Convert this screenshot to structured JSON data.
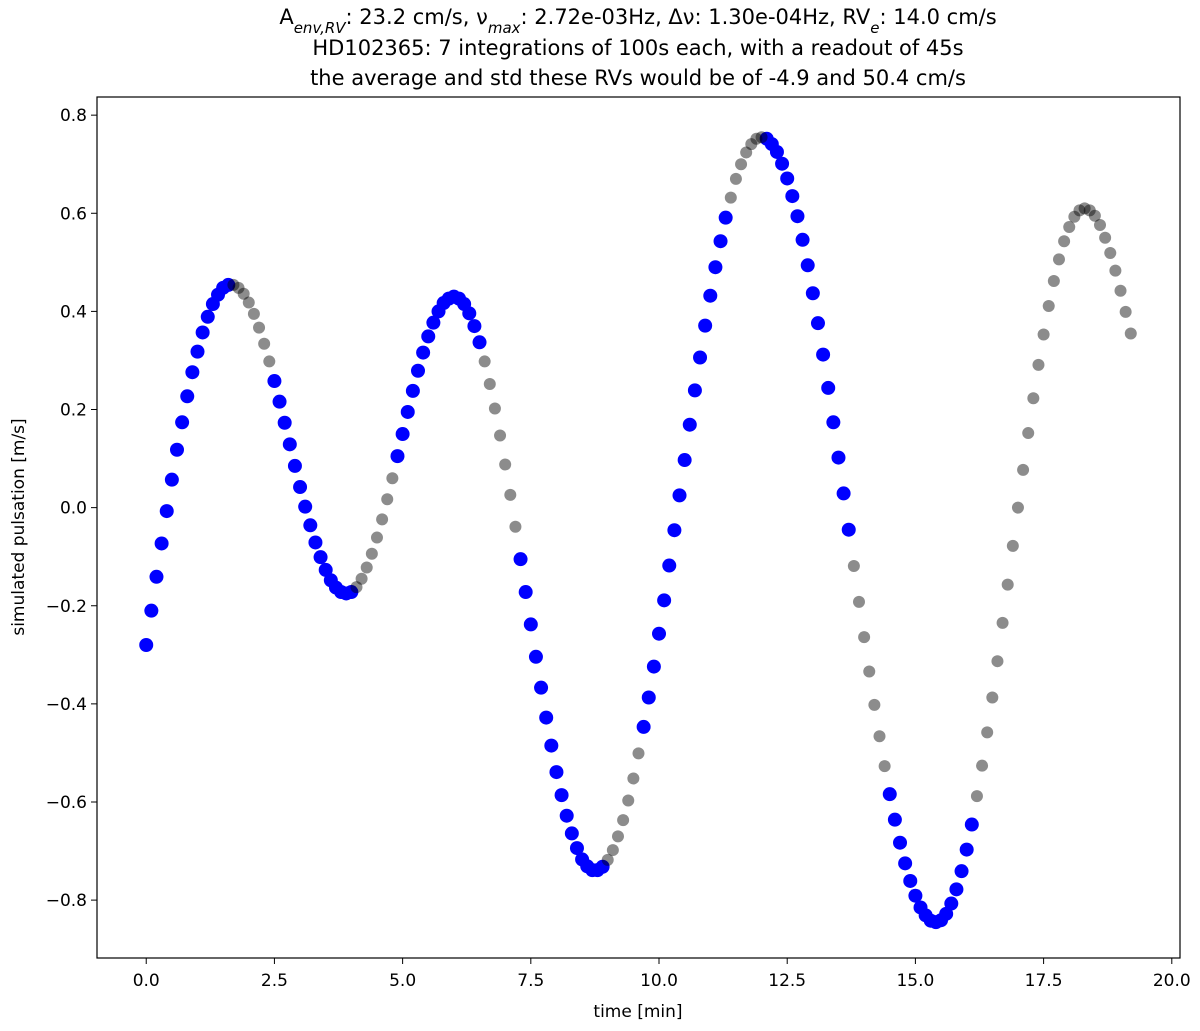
{
  "chart_data": {
    "type": "scatter",
    "title": [
      "A",
      "env,RV",
      ": 23.2 cm/s, ν",
      "max",
      ": 2.72e-03Hz, Δν: 1.30e-04Hz, RV",
      "e",
      ": 14.0 cm/s"
    ],
    "subtitle": [
      "HD102365: 7 integrations of 100s each, with a readout of 45s",
      "the average and std these RVs would be of -4.9 and 50.4 cm/s"
    ],
    "xlabel": "time [min]",
    "ylabel": "simulated pulsation [m/s]",
    "xlim": [
      -0.96,
      20.16
    ],
    "ylim": [
      -0.918,
      0.837
    ],
    "xticks": [
      {
        "value": 0,
        "label": "0.0"
      },
      {
        "value": 2.5,
        "label": "2.5"
      },
      {
        "value": 5,
        "label": "5.0"
      },
      {
        "value": 7.5,
        "label": "7.5"
      },
      {
        "value": 10,
        "label": "10.0"
      },
      {
        "value": 12.5,
        "label": "12.5"
      },
      {
        "value": 15,
        "label": "15.0"
      },
      {
        "value": 17.5,
        "label": "17.5"
      },
      {
        "value": 20,
        "label": "20.0"
      }
    ],
    "yticks": [
      {
        "value": -0.8,
        "label": "−0.8"
      },
      {
        "value": -0.6,
        "label": "−0.6"
      },
      {
        "value": -0.4,
        "label": "−0.4"
      },
      {
        "value": -0.2,
        "label": "−0.2"
      },
      {
        "value": 0,
        "label": "0.0"
      },
      {
        "value": 0.2,
        "label": "0.2"
      },
      {
        "value": 0.4,
        "label": "0.4"
      },
      {
        "value": 0.6,
        "label": "0.6"
      },
      {
        "value": 0.8,
        "label": "0.8"
      }
    ],
    "grid": false,
    "series": [
      {
        "color": "#0000ff",
        "alpha": 1,
        "x": [
          0,
          0.1,
          0.2,
          0.3,
          0.4,
          0.5,
          0.6,
          0.7,
          0.8,
          0.9,
          1.0,
          1.1,
          1.2,
          1.3,
          1.4,
          1.5,
          1.6,
          2.5,
          2.6,
          2.7,
          2.8,
          2.9,
          3.0,
          3.1,
          3.2,
          3.3,
          3.4,
          3.5,
          3.6,
          3.7,
          3.8,
          3.9,
          4.0,
          4.9,
          5.0,
          5.1,
          5.2,
          5.3,
          5.4,
          5.5,
          5.6,
          5.7,
          5.8,
          5.9,
          6.0,
          6.1,
          6.2,
          6.3,
          6.4,
          6.5,
          7.3,
          7.4,
          7.5,
          7.6,
          7.7,
          7.8,
          7.9,
          8.0,
          8.1,
          8.2,
          8.3,
          8.4,
          8.5,
          8.6,
          8.7,
          8.8,
          8.9,
          9.7,
          9.8,
          9.9,
          10.0,
          10.1,
          10.2,
          10.3,
          10.4,
          10.5,
          10.6,
          10.7,
          10.8,
          10.9,
          11.0,
          11.1,
          11.2,
          11.3,
          12.1,
          12.2,
          12.3,
          12.4,
          12.5,
          12.6,
          12.7,
          12.8,
          12.9,
          13.0,
          13.1,
          13.2,
          13.3,
          13.4,
          13.5,
          13.6,
          13.7,
          14.5,
          14.6,
          14.7,
          14.8,
          14.9,
          15.0,
          15.1,
          15.2,
          15.3,
          15.4,
          15.5,
          15.6,
          15.7,
          15.8,
          15.9,
          16.0,
          16.1
        ],
        "values": [
          -0.28,
          -0.21,
          -0.141,
          -0.073,
          -0.007,
          0.057,
          0.118,
          0.174,
          0.227,
          0.276,
          0.318,
          0.357,
          0.389,
          0.415,
          0.434,
          0.448,
          0.454,
          0.258,
          0.216,
          0.173,
          0.129,
          0.085,
          0.042,
          0.002,
          -0.036,
          -0.071,
          -0.101,
          -0.127,
          -0.148,
          -0.163,
          -0.172,
          -0.175,
          -0.172,
          0.105,
          0.15,
          0.195,
          0.238,
          0.279,
          0.316,
          0.349,
          0.377,
          0.4,
          0.417,
          0.426,
          0.43,
          0.426,
          0.415,
          0.396,
          0.37,
          0.337,
          -0.105,
          -0.172,
          -0.238,
          -0.304,
          -0.367,
          -0.428,
          -0.485,
          -0.539,
          -0.586,
          -0.628,
          -0.664,
          -0.694,
          -0.717,
          -0.731,
          -0.739,
          -0.739,
          -0.732,
          -0.447,
          -0.387,
          -0.324,
          -0.257,
          -0.189,
          -0.118,
          -0.046,
          0.025,
          0.097,
          0.169,
          0.239,
          0.306,
          0.371,
          0.432,
          0.49,
          0.543,
          0.591,
          0.752,
          0.741,
          0.725,
          0.701,
          0.671,
          0.635,
          0.594,
          0.546,
          0.494,
          0.437,
          0.376,
          0.312,
          0.244,
          0.174,
          0.102,
          0.029,
          -0.045,
          -0.584,
          -0.636,
          -0.683,
          -0.725,
          -0.761,
          -0.791,
          -0.815,
          -0.831,
          -0.842,
          -0.845,
          -0.841,
          -0.828,
          -0.807,
          -0.778,
          -0.741,
          -0.697,
          -0.646
        ]
      },
      {
        "color": "#000000",
        "alpha": 0.45,
        "x": [
          1.7,
          1.8,
          1.9,
          2.0,
          2.1,
          2.2,
          2.3,
          2.4,
          4.1,
          4.2,
          4.3,
          4.4,
          4.5,
          4.6,
          4.7,
          4.8,
          6.6,
          6.7,
          6.8,
          6.9,
          7.0,
          7.1,
          7.2,
          9.0,
          9.1,
          9.2,
          9.3,
          9.4,
          9.5,
          9.6,
          11.4,
          11.5,
          11.6,
          11.7,
          11.8,
          11.9,
          12.0,
          13.8,
          13.9,
          14.0,
          14.1,
          14.2,
          14.3,
          14.4,
          16.2,
          16.3,
          16.4,
          16.5,
          16.6,
          16.7,
          16.8,
          16.9,
          17.0,
          17.1,
          17.2,
          17.3,
          17.4,
          17.5,
          17.6,
          17.7,
          17.8,
          17.9,
          18.0,
          18.1,
          18.2,
          18.3,
          18.4,
          18.5,
          18.6,
          18.7,
          18.8,
          18.9,
          19.0,
          19.1,
          19.2
        ],
        "values": [
          0.454,
          0.448,
          0.436,
          0.418,
          0.395,
          0.367,
          0.334,
          0.298,
          -0.162,
          -0.145,
          -0.122,
          -0.094,
          -0.061,
          -0.024,
          0.017,
          0.06,
          0.298,
          0.252,
          0.202,
          0.147,
          0.088,
          0.026,
          -0.039,
          -0.718,
          -0.698,
          -0.67,
          -0.637,
          -0.597,
          -0.552,
          -0.501,
          0.632,
          0.67,
          0.7,
          0.724,
          0.741,
          0.752,
          0.755,
          -0.119,
          -0.192,
          -0.264,
          -0.334,
          -0.402,
          -0.466,
          -0.527,
          -0.588,
          -0.526,
          -0.458,
          -0.387,
          -0.313,
          -0.235,
          -0.157,
          -0.078,
          0.0,
          0.077,
          0.152,
          0.223,
          0.291,
          0.353,
          0.411,
          0.462,
          0.506,
          0.543,
          0.572,
          0.593,
          0.606,
          0.61,
          0.606,
          0.595,
          0.576,
          0.55,
          0.519,
          0.483,
          0.442,
          0.399,
          0.355
        ]
      }
    ]
  }
}
